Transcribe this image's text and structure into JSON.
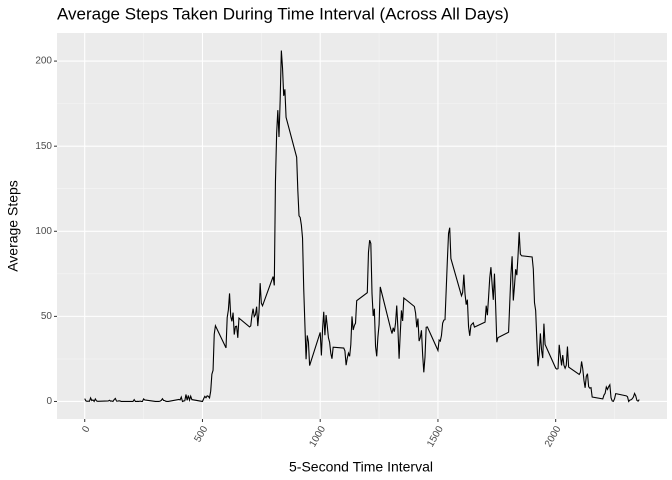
{
  "chart_data": {
    "type": "line",
    "title": "Average Steps Taken During Time Interval (Across All Days)",
    "x_label": "5-Second Time Interval",
    "y_label": "Average Steps",
    "color": "#000000",
    "x": [
      0,
      5,
      10,
      15,
      20,
      25,
      30,
      35,
      40,
      45,
      50,
      55,
      100,
      105,
      110,
      115,
      120,
      125,
      130,
      135,
      140,
      145,
      150,
      155,
      200,
      205,
      210,
      215,
      220,
      225,
      230,
      235,
      240,
      245,
      250,
      255,
      300,
      305,
      310,
      315,
      320,
      325,
      330,
      335,
      340,
      345,
      350,
      355,
      400,
      405,
      410,
      415,
      420,
      425,
      430,
      435,
      440,
      445,
      450,
      455,
      500,
      505,
      510,
      515,
      520,
      525,
      530,
      535,
      540,
      545,
      550,
      555,
      600,
      605,
      610,
      615,
      620,
      625,
      630,
      635,
      640,
      645,
      650,
      655,
      700,
      705,
      710,
      715,
      720,
      725,
      730,
      735,
      740,
      745,
      750,
      755,
      800,
      805,
      810,
      815,
      820,
      825,
      830,
      835,
      840,
      845,
      850,
      855,
      900,
      905,
      910,
      915,
      920,
      925,
      930,
      935,
      940,
      945,
      950,
      955,
      1000,
      1005,
      1010,
      1015,
      1020,
      1025,
      1030,
      1035,
      1040,
      1045,
      1050,
      1055,
      1100,
      1105,
      1110,
      1115,
      1120,
      1125,
      1130,
      1135,
      1140,
      1145,
      1150,
      1155,
      1200,
      1205,
      1210,
      1215,
      1220,
      1225,
      1230,
      1235,
      1240,
      1245,
      1250,
      1255,
      1300,
      1305,
      1310,
      1315,
      1320,
      1325,
      1330,
      1335,
      1340,
      1345,
      1350,
      1355,
      1400,
      1405,
      1410,
      1415,
      1420,
      1425,
      1430,
      1435,
      1440,
      1445,
      1450,
      1455,
      1500,
      1505,
      1510,
      1515,
      1520,
      1525,
      1530,
      1535,
      1540,
      1545,
      1550,
      1555,
      1600,
      1605,
      1610,
      1615,
      1620,
      1625,
      1630,
      1635,
      1640,
      1645,
      1650,
      1655,
      1700,
      1705,
      1710,
      1715,
      1720,
      1725,
      1730,
      1735,
      1740,
      1745,
      1750,
      1755,
      1800,
      1805,
      1810,
      1815,
      1820,
      1825,
      1830,
      1835,
      1840,
      1845,
      1850,
      1855,
      1900,
      1905,
      1910,
      1915,
      1920,
      1925,
      1930,
      1935,
      1940,
      1945,
      1950,
      1955,
      2000,
      2005,
      2010,
      2015,
      2020,
      2025,
      2030,
      2035,
      2040,
      2045,
      2050,
      2055,
      2100,
      2105,
      2110,
      2115,
      2120,
      2125,
      2130,
      2135,
      2140,
      2145,
      2150,
      2155,
      2200,
      2205,
      2210,
      2215,
      2220,
      2225,
      2230,
      2235,
      2240,
      2245,
      2250,
      2255,
      2300,
      2305,
      2310,
      2315,
      2320,
      2325,
      2330,
      2335,
      2340,
      2345,
      2350,
      2355
    ],
    "values": [
      1.7,
      0.3,
      0.1,
      0.2,
      0.1,
      2.1,
      0.5,
      0.9,
      0,
      1.5,
      0.3,
      0.1,
      0.3,
      0.7,
      0.2,
      0.3,
      0,
      1.1,
      1.8,
      0.2,
      0.2,
      0.4,
      0.3,
      0,
      0,
      0,
      1.1,
      0,
      0,
      0.1,
      0,
      0.2,
      0,
      0,
      1.5,
      0.9,
      0,
      0,
      0,
      0,
      0.2,
      0.6,
      1.6,
      0.6,
      0.5,
      0.1,
      0,
      0,
      1.2,
      0.9,
      2.6,
      0,
      0.3,
      0.4,
      4.1,
      0.7,
      3.5,
      0.8,
      3.1,
      1.1,
      0,
      1.6,
      3,
      2.2,
      3.3,
      3,
      2.1,
      6.1,
      16,
      18.3,
      39.5,
      44.5,
      31.5,
      49.3,
      53.8,
      63.5,
      50,
      47.1,
      52.2,
      39.3,
      44,
      44.2,
      37.4,
      49,
      43.8,
      44.4,
      50.5,
      54.5,
      49.9,
      51,
      55.7,
      44.3,
      52.3,
      69.5,
      57.8,
      56.2,
      73.4,
      68.2,
      129.4,
      157.5,
      171.2,
      155.4,
      177.3,
      206.2,
      195.9,
      179.6,
      183.4,
      167,
      143.5,
      124,
      109.1,
      108.1,
      103.7,
      96,
      66.2,
      45.2,
      24.8,
      38.8,
      35,
      21.1,
      40.6,
      27,
      42.4,
      52.7,
      38.9,
      50.8,
      44.3,
      37.4,
      34.7,
      28.3,
      25.1,
      31.9,
      31.4,
      29.7,
      21.3,
      25.5,
      28.4,
      26.5,
      33.4,
      50,
      42,
      44.6,
      46,
      59.2,
      63.9,
      87.7,
      94.8,
      92.8,
      63.4,
      50.2,
      54.5,
      32.4,
      26.5,
      37.7,
      45.1,
      67.3,
      42.3,
      39.9,
      43.3,
      41,
      46.2,
      56.4,
      42.8,
      25.1,
      40,
      53.5,
      47.3,
      60.8,
      55.8,
      52,
      43.6,
      48.7,
      35.5,
      37.5,
      41.8,
      27.5,
      17.1,
      26.1,
      43.6,
      43.8,
      30,
      36.1,
      35.5,
      38.8,
      46,
      47.8,
      48.1,
      65.3,
      82.9,
      98.7,
      102.1,
      84,
      62.1,
      64.1,
      74.5,
      63.2,
      56.9,
      59.8,
      43.9,
      38.6,
      44.7,
      45.5,
      46.2,
      43.7,
      46.6,
      56.3,
      50.7,
      61.2,
      72.7,
      78.9,
      68.9,
      59.7,
      75.1,
      56.5,
      34.8,
      37.5,
      40.7,
      58,
      74.7,
      85.3,
      59.3,
      67.8,
      77.7,
      74.2,
      85.3,
      99.5,
      86.6,
      85.6,
      84.9,
      77.8,
      58,
      53.4,
      36.3,
      20.7,
      27.4,
      40,
      30.2,
      25.5,
      45.7,
      33.5,
      19.6,
      19,
      19.3,
      33.3,
      26.8,
      21.2,
      27.3,
      21.3,
      19.5,
      21.3,
      32.3,
      20.2,
      15.9,
      17.2,
      23.5,
      19.2,
      12.5,
      8,
      14.7,
      16.3,
      8.7,
      7.8,
      8.1,
      2.6,
      1.5,
      3.7,
      4.8,
      8.5,
      7.1,
      8.7,
      9.8,
      2.2,
      0.3,
      0.1,
      1.6,
      4.6,
      3.3,
      2.8,
      0,
      0.8,
      1,
      1.6,
      2.6,
      4.7,
      3.3,
      0.6,
      0.2,
      1.1
    ],
    "xlim": [
      -117.75,
      2472.75
    ],
    "xticks": [
      0,
      500,
      1000,
      1500,
      2000
    ],
    "minor_xticks": [
      250,
      750,
      1250,
      1750,
      2250
    ],
    "ylim": [
      -10.3,
      216.5
    ],
    "yticks": [
      0,
      50,
      100,
      150,
      200
    ],
    "minor_yticks": [
      25,
      75,
      125,
      175
    ],
    "grid": true
  }
}
